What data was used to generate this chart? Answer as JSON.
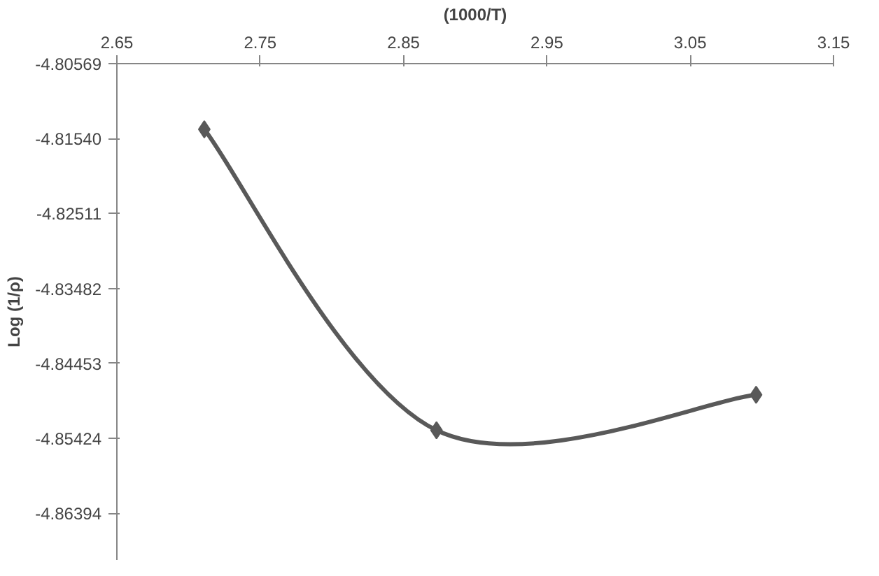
{
  "chart_data": {
    "type": "line",
    "xlabel": "(1000/T)",
    "ylabel": "Log (1/ρ)",
    "x": [
      2.711,
      2.873,
      3.096
    ],
    "series": [
      {
        "color": "#595959",
        "values": [
          -4.8142,
          -4.8532,
          -4.8486
        ]
      }
    ],
    "xlim": [
      2.65,
      3.15
    ],
    "xticks": [
      2.65,
      2.75,
      2.85,
      2.95,
      3.05,
      3.15
    ],
    "ylim": [
      -4.87,
      -4.80569
    ],
    "yticks": [
      -4.80569,
      {
        "value": -4.8154,
        "label": "-4.81540"
      },
      -4.82511,
      -4.83482,
      -4.84453,
      -4.85424,
      -4.86394
    ],
    "marker": "diamond",
    "line_style": "solid",
    "grid": false
  }
}
